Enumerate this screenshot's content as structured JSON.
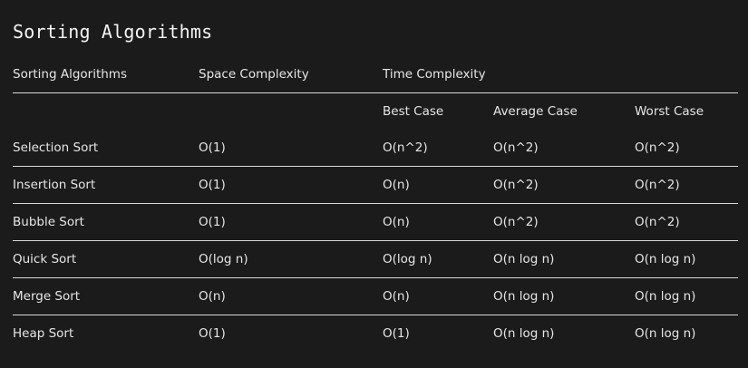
{
  "page_title": "Sorting Algorithms",
  "header": {
    "algorithm": "Sorting Algorithms",
    "space": "Space Complexity",
    "time": "Time Complexity",
    "best": "Best Case",
    "average": "Average Case",
    "worst": "Worst Case"
  },
  "rows": [
    {
      "name": "Selection Sort",
      "space": "O(1)",
      "best": "O(n^2)",
      "average": "O(n^2)",
      "worst": "O(n^2)"
    },
    {
      "name": "Insertion Sort",
      "space": "O(1)",
      "best": "O(n)",
      "average": "O(n^2)",
      "worst": "O(n^2)"
    },
    {
      "name": "Bubble Sort",
      "space": "O(1)",
      "best": "O(n)",
      "average": "O(n^2)",
      "worst": "O(n^2)"
    },
    {
      "name": "Quick Sort",
      "space": "O(log n)",
      "best": "O(log n)",
      "average": "O(n log n)",
      "worst": "O(n log n)"
    },
    {
      "name": "Merge Sort",
      "space": "O(n)",
      "best": "O(n)",
      "average": "O(n log n)",
      "worst": "O(n log n)"
    },
    {
      "name": "Heap Sort",
      "space": "O(1)",
      "best": "O(1)",
      "average": "O(n log n)",
      "worst": "O(n log n)"
    }
  ]
}
